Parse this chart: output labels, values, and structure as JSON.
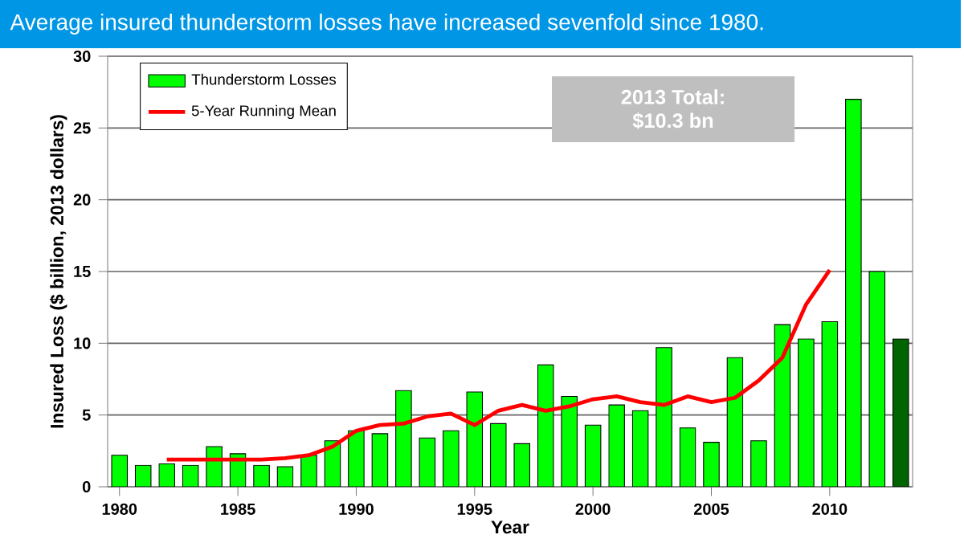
{
  "chart_data": {
    "type": "bar",
    "title": "Average insured thunderstorm losses have increased sevenfold since 1980.",
    "xlabel": "Year",
    "ylabel": "Insured Loss ($ billion, 2013 dollars)",
    "x": [
      1980,
      1981,
      1982,
      1983,
      1984,
      1985,
      1986,
      1987,
      1988,
      1989,
      1990,
      1991,
      1992,
      1993,
      1994,
      1995,
      1996,
      1997,
      1998,
      1999,
      2000,
      2001,
      2002,
      2003,
      2004,
      2005,
      2006,
      2007,
      2008,
      2009,
      2010,
      2011,
      2012,
      2013
    ],
    "series": [
      {
        "name": "Thunderstorm Losses",
        "color": "#00ff00",
        "colors": [
          "#00ff00",
          "#00ff00",
          "#00ff00",
          "#00ff00",
          "#00ff00",
          "#00ff00",
          "#00ff00",
          "#00ff00",
          "#00ff00",
          "#00ff00",
          "#00ff00",
          "#00ff00",
          "#00ff00",
          "#00ff00",
          "#00ff00",
          "#00ff00",
          "#00ff00",
          "#00ff00",
          "#00ff00",
          "#00ff00",
          "#00ff00",
          "#00ff00",
          "#00ff00",
          "#00ff00",
          "#00ff00",
          "#00ff00",
          "#00ff00",
          "#00ff00",
          "#00ff00",
          "#00ff00",
          "#00ff00",
          "#00ff00",
          "#00ff00",
          "#006400"
        ],
        "values": [
          2.2,
          1.5,
          1.6,
          1.5,
          2.8,
          2.3,
          1.5,
          1.4,
          2.2,
          3.2,
          3.9,
          3.7,
          6.7,
          3.4,
          3.9,
          6.6,
          4.4,
          3.0,
          8.5,
          6.3,
          4.3,
          5.7,
          5.3,
          9.7,
          4.1,
          3.1,
          9.0,
          3.2,
          11.3,
          10.3,
          11.5,
          27.0,
          15.0,
          10.3
        ]
      },
      {
        "name": "5-Year Running Mean",
        "type": "line",
        "color": "#ff0000",
        "x": [
          1982,
          1983,
          1984,
          1985,
          1986,
          1987,
          1988,
          1989,
          1990,
          1991,
          1992,
          1993,
          1994,
          1995,
          1996,
          1997,
          1998,
          1999,
          2000,
          2001,
          2002,
          2003,
          2004,
          2005,
          2006,
          2007,
          2008,
          2009,
          2010
        ],
        "values": [
          1.9,
          1.9,
          1.9,
          1.9,
          1.9,
          2.0,
          2.2,
          2.8,
          3.9,
          4.3,
          4.4,
          4.9,
          5.1,
          4.3,
          5.3,
          5.7,
          5.3,
          5.6,
          6.1,
          6.3,
          5.9,
          5.7,
          6.3,
          5.9,
          6.2,
          7.4,
          9.0,
          12.7,
          15.1
        ]
      }
    ],
    "xlim": [
      1979.5,
      2013.5
    ],
    "ylim": [
      0,
      30
    ],
    "xticks": [
      1980,
      1985,
      1990,
      1995,
      2000,
      2005,
      2010
    ],
    "yticks": [
      0,
      5,
      10,
      15,
      20,
      25,
      30
    ],
    "grid": "y",
    "legend": "top left",
    "marker": "none",
    "line_style": "solid",
    "annotations": [
      "2013 Total:",
      "$10.3 bn"
    ]
  }
}
